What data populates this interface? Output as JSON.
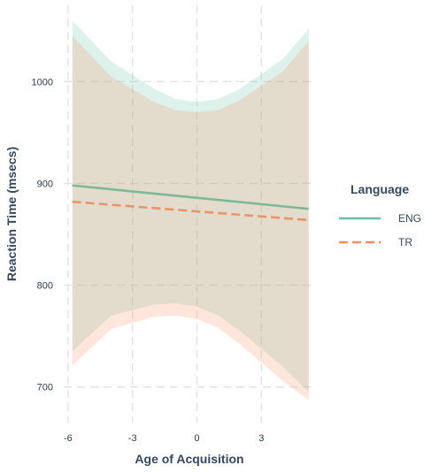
{
  "chart_data": {
    "type": "line",
    "xlabel": "Age of Acquisition",
    "ylabel": "Reaction Time (msecs)",
    "xlim": [
      -6.2,
      5.5
    ],
    "ylim": [
      665,
      1075
    ],
    "xticks": [
      -6,
      -3,
      0,
      3
    ],
    "yticks": [
      700,
      800,
      900,
      1000
    ],
    "grid": true,
    "legend": {
      "title": "Language",
      "position": "right"
    },
    "series": [
      {
        "name": "ENG",
        "color": "#7fb896",
        "legend_color": "#66c2a5",
        "ribbon_color": "#66c2a5",
        "dash": "solid",
        "x": [
          -5.8,
          5.2
        ],
        "y": [
          898,
          875
        ],
        "ribbon_x": [
          -5.8,
          -4,
          -2,
          -1,
          0,
          1,
          2,
          4,
          5.2
        ],
        "ribbon_lower": [
          735,
          770,
          781,
          782,
          779,
          770,
          755,
          720,
          695
        ],
        "ribbon_upper": [
          1060,
          1020,
          993,
          983,
          980,
          983,
          993,
          1022,
          1052
        ]
      },
      {
        "name": "TR",
        "color": "#e8956a",
        "legend_color": "#fc8d62",
        "ribbon_color": "#fc8d62",
        "dash": "dashed",
        "x": [
          -5.8,
          5.2
        ],
        "y": [
          882,
          864
        ],
        "ribbon_x": [
          -5.8,
          -4,
          -2,
          -1,
          0,
          1,
          2,
          4,
          5.2
        ],
        "ribbon_lower": [
          721,
          757,
          769,
          770,
          767,
          758,
          742,
          706,
          687
        ],
        "ribbon_upper": [
          1045,
          1005,
          980,
          972,
          970,
          972,
          982,
          1010,
          1040
        ]
      }
    ]
  }
}
